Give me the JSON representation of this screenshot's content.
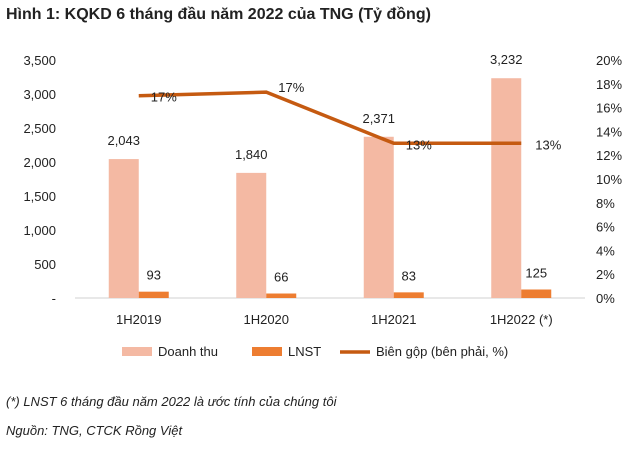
{
  "chart_data": {
    "type": "bar",
    "title": "Hình 1: KQKD 6 tháng đầu năm 2022 của TNG (Tỷ đồng)",
    "categories": [
      "1H2019",
      "1H2020",
      "1H2021",
      "1H2022 (*)"
    ],
    "series": [
      {
        "name": "Doanh thu",
        "type": "bar",
        "axis": "left",
        "color": "#f4b9a3",
        "values": [
          2043,
          1840,
          2371,
          3232
        ],
        "labels": [
          "2,043",
          "1,840",
          "2,371",
          "3,232"
        ]
      },
      {
        "name": "LNST",
        "type": "bar",
        "axis": "left",
        "color": "#ed7d31",
        "values": [
          93,
          66,
          83,
          125
        ],
        "labels": [
          "93",
          "66",
          "83",
          "125"
        ]
      },
      {
        "name": "Biên gộp (bên phải, %)",
        "type": "line",
        "axis": "right",
        "color": "#c55a11",
        "values": [
          17.0,
          17.3,
          13.0,
          13.0
        ],
        "labels": [
          "17%",
          "17%",
          "13%",
          "13%"
        ]
      }
    ],
    "y_left": {
      "range": [
        0,
        3500
      ],
      "ticks": [
        "-",
        "500",
        "1,000",
        "1,500",
        "2,000",
        "2,500",
        "3,000",
        "3,500"
      ]
    },
    "y_right": {
      "range": [
        0,
        20
      ],
      "ticks": [
        "0%",
        "2%",
        "4%",
        "6%",
        "8%",
        "10%",
        "12%",
        "14%",
        "16%",
        "18%",
        "20%"
      ]
    },
    "grid": false,
    "legend": "bottom"
  },
  "notes": {
    "footnote": "(*) LNST 6 tháng đầu năm 2022 là ước tính của chúng tôi",
    "source": "Nguồn: TNG, CTCK Rồng Việt"
  }
}
